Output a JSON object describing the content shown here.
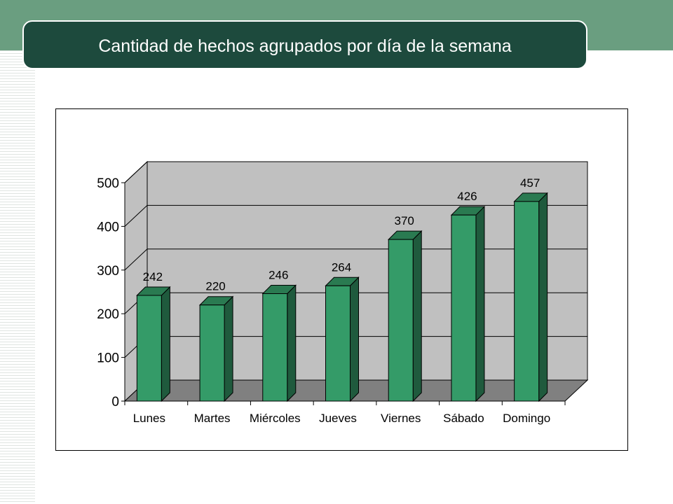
{
  "slide": {
    "title": "Cantidad de hechos agrupados por día de la semana"
  },
  "colors": {
    "header_band": "#6a9e80",
    "title_bar": "#1d4a3d",
    "bar_front": "#349b68",
    "bar_side": "#1f5a3d",
    "bar_top": "#2a7a51",
    "wall": "#c0c0c0",
    "floor": "#808080"
  },
  "chart_data": {
    "type": "bar",
    "three_d": true,
    "categories": [
      "Lunes",
      "Martes",
      "Miércoles",
      "Jueves",
      "Viernes",
      "Sábado",
      "Domingo"
    ],
    "values": [
      242,
      220,
      246,
      264,
      370,
      426,
      457
    ],
    "data_labels": [
      "242",
      "220",
      "246",
      "264",
      "370",
      "426",
      "457"
    ],
    "ylim": [
      0,
      500
    ],
    "yticks": [
      "0",
      "100",
      "200",
      "300",
      "400",
      "500"
    ],
    "ytick_values": [
      0,
      100,
      200,
      300,
      400,
      500
    ],
    "grid": true,
    "legend": "none"
  }
}
